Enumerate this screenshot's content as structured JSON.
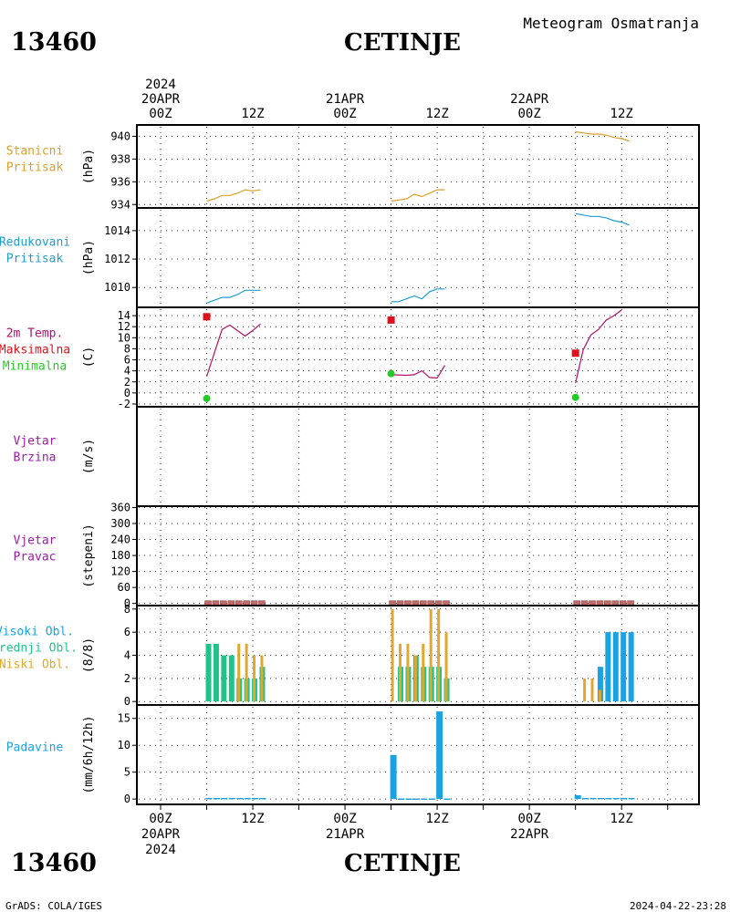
{
  "header": {
    "station_id": "13460",
    "station_name": "CETINJE",
    "title": "Meteogram Osmatranja"
  },
  "footer": {
    "credit": "GrADS: COLA/IGES",
    "timestamp": "2024-04-22-23:28"
  },
  "top_axis": {
    "date_labels": [
      {
        "hour": 0,
        "lines": [
          "2024",
          "20APR",
          "00Z"
        ]
      },
      {
        "hour": 24,
        "lines": [
          "21APR",
          "00Z"
        ]
      },
      {
        "hour": 48,
        "lines": [
          "22APR",
          "00Z"
        ]
      }
    ],
    "noon_labels": [
      {
        "hour": 12,
        "text": "12Z"
      },
      {
        "hour": 36,
        "text": "12Z"
      },
      {
        "hour": 60,
        "text": "12Z"
      }
    ]
  },
  "bottom_axis": {
    "labels": [
      {
        "hour": 0,
        "lines": [
          "00Z",
          "20APR",
          "2024"
        ]
      },
      {
        "hour": 12,
        "lines": [
          "12Z"
        ]
      },
      {
        "hour": 24,
        "lines": [
          "00Z",
          "21APR"
        ]
      },
      {
        "hour": 36,
        "lines": [
          "12Z"
        ]
      },
      {
        "hour": 48,
        "lines": [
          "00Z",
          "22APR"
        ]
      },
      {
        "hour": 60,
        "lines": [
          "12Z"
        ]
      }
    ]
  },
  "colors": {
    "station_pressure": "#d9a12b",
    "sea_pressure": "#1e9fcf",
    "temperature": "#b0106a",
    "t_max": "#e0101a",
    "t_min": "#22cc22",
    "wind": "#a01aa8",
    "wind_dir_bar": "#c06868",
    "high_clouds": "#1aa3e0",
    "mid_clouds": "#20c48a",
    "low_clouds": "#e0a82e",
    "precip": "#1aa3e0",
    "grid": "#333333"
  },
  "chart_data": [
    {
      "type": "line",
      "panel": "station_pressure",
      "labels": [
        {
          "text": "Stanicni",
          "color": "#d9a12b"
        },
        {
          "text": "Pritisak",
          "color": "#d9a12b"
        }
      ],
      "ylabel": "(hPa)",
      "ylim": [
        933.7,
        941.0
      ],
      "yticks": [
        934,
        936,
        938,
        940
      ],
      "series": [
        {
          "x": [
            6,
            7,
            8,
            9,
            10,
            11,
            12,
            13
          ],
          "y": [
            934.3,
            934.5,
            934.8,
            934.8,
            935.0,
            935.3,
            935.2,
            935.3
          ]
        },
        {
          "x": [
            30,
            31,
            32,
            33,
            34,
            35,
            36,
            37
          ],
          "y": [
            934.3,
            934.4,
            934.5,
            934.9,
            934.7,
            935.0,
            935.3,
            935.3
          ]
        },
        {
          "x": [
            54,
            55,
            56,
            57,
            58,
            59,
            60,
            61
          ],
          "y": [
            940.4,
            940.3,
            940.2,
            940.2,
            940.1,
            939.9,
            939.8,
            939.6
          ]
        }
      ]
    },
    {
      "type": "line",
      "panel": "sea_pressure",
      "labels": [
        {
          "text": "Redukovani",
          "color": "#1e9fcf"
        },
        {
          "text": "Pritisak",
          "color": "#1e9fcf"
        }
      ],
      "ylabel": "(hPa)",
      "ylim": [
        1008.6,
        1015.6
      ],
      "yticks": [
        1010,
        1012,
        1014
      ],
      "series": [
        {
          "x": [
            6,
            7,
            8,
            9,
            10,
            11,
            12,
            13
          ],
          "y": [
            1008.9,
            1009.1,
            1009.3,
            1009.3,
            1009.5,
            1009.8,
            1009.8,
            1009.8
          ]
        },
        {
          "x": [
            30,
            31,
            32,
            33,
            34,
            35,
            36,
            37
          ],
          "y": [
            1009.0,
            1009.0,
            1009.2,
            1009.4,
            1009.2,
            1009.7,
            1009.9,
            1009.9
          ]
        },
        {
          "x": [
            54,
            55,
            56,
            57,
            58,
            59,
            60,
            61
          ],
          "y": [
            1015.2,
            1015.1,
            1015.0,
            1015.0,
            1014.9,
            1014.7,
            1014.6,
            1014.4
          ]
        }
      ]
    },
    {
      "type": "line",
      "panel": "temperature",
      "labels": [
        {
          "text": "2m Temp.",
          "color": "#b0106a"
        },
        {
          "text": "Maksimalna",
          "color": "#e0101a"
        },
        {
          "text": "Minimalna",
          "color": "#22cc22"
        }
      ],
      "ylabel": "(C)",
      "ylim": [
        -2.5,
        15.5
      ],
      "yticks": [
        -2,
        0,
        2,
        4,
        6,
        8,
        10,
        12,
        14
      ],
      "series": [
        {
          "x": [
            6,
            8,
            9,
            11,
            12,
            13
          ],
          "y": [
            3.0,
            11.5,
            12.3,
            10.3,
            11.3,
            12.5
          ]
        },
        {
          "x": [
            30,
            32,
            33,
            34,
            35,
            36,
            37
          ],
          "y": [
            3.3,
            3.2,
            3.3,
            4.0,
            2.8,
            2.7,
            5.0
          ]
        },
        {
          "x": [
            54,
            55,
            56,
            57,
            58,
            59,
            60
          ],
          "y": [
            1.8,
            7.8,
            10.5,
            11.5,
            13.2,
            14.0,
            15.0
          ]
        }
      ],
      "t_max": [
        {
          "x": 6,
          "y": 13.8
        },
        {
          "x": 30,
          "y": 13.2
        },
        {
          "x": 54,
          "y": 7.2
        }
      ],
      "t_min": [
        {
          "x": 6,
          "y": -1.0
        },
        {
          "x": 30,
          "y": 3.5
        },
        {
          "x": 54,
          "y": -0.8
        }
      ]
    },
    {
      "type": "line",
      "panel": "wind_speed",
      "labels": [
        {
          "text": "Vjetar",
          "color": "#a01aa8"
        },
        {
          "text": "Brzina",
          "color": "#a01aa8"
        }
      ],
      "ylabel": "(m/s)",
      "ylim": [
        0,
        1
      ],
      "yticks": [],
      "series": []
    },
    {
      "type": "bar",
      "panel": "wind_direction",
      "labels": [
        {
          "text": "Vjetar",
          "color": "#a01aa8"
        },
        {
          "text": "Pravac",
          "color": "#a01aa8"
        }
      ],
      "ylabel": "(stepeni)",
      "ylim": [
        -8,
        365
      ],
      "yticks": [
        0,
        60,
        120,
        180,
        240,
        300,
        360
      ],
      "x": [
        6,
        7,
        8,
        9,
        10,
        11,
        12,
        13,
        30,
        31,
        32,
        33,
        34,
        35,
        36,
        37,
        54,
        55,
        56,
        57,
        58,
        59,
        60,
        61
      ],
      "values": [
        0,
        0,
        0,
        0,
        0,
        0,
        0,
        0,
        0,
        0,
        0,
        0,
        0,
        0,
        0,
        0,
        0,
        0,
        0,
        0,
        0,
        0,
        0,
        0
      ]
    },
    {
      "type": "bar",
      "panel": "clouds",
      "labels": [
        {
          "text": "Visoki Obl.",
          "color": "#1aa3e0"
        },
        {
          "text": "Srednji Obl.",
          "color": "#20c48a"
        },
        {
          "text": "Niski Obl.",
          "color": "#e0a82e"
        }
      ],
      "ylabel": "(8/8)",
      "ylim": [
        -0.3,
        8.3
      ],
      "yticks": [
        0,
        2,
        4,
        6,
        8
      ],
      "series": [
        {
          "name": "Visoki Obl.",
          "x": [
            54,
            55,
            56,
            57,
            58,
            59,
            60,
            61
          ],
          "values": [
            0,
            0,
            0,
            3,
            6,
            6,
            6,
            6
          ]
        },
        {
          "name": "Srednji Obl.",
          "x": [
            6,
            7,
            8,
            9,
            10,
            11,
            12,
            13,
            30,
            31,
            32,
            33,
            34,
            35,
            36,
            37
          ],
          "values": [
            5,
            5,
            4,
            4,
            2,
            2,
            2,
            3,
            0,
            3,
            3,
            4,
            3,
            3,
            3,
            2
          ]
        },
        {
          "name": "Niski Obl.",
          "x": [
            10,
            11,
            12,
            13,
            30,
            31,
            32,
            33,
            34,
            35,
            36,
            37,
            55,
            56,
            57
          ],
          "values": [
            5,
            5,
            4,
            4,
            8,
            5,
            5,
            4,
            5,
            8,
            8,
            6,
            2,
            2,
            1
          ]
        }
      ]
    },
    {
      "type": "bar",
      "panel": "precipitation",
      "labels": [
        {
          "text": "Padavine",
          "color": "#1aa3e0"
        }
      ],
      "ylabel": "(mm/6h/12h)",
      "ylim": [
        -1,
        17.5
      ],
      "yticks": [
        0,
        5,
        10,
        15
      ],
      "x": [
        6,
        7,
        8,
        9,
        10,
        11,
        12,
        13,
        30,
        31,
        32,
        33,
        34,
        35,
        36,
        37,
        54,
        55,
        56,
        57,
        58,
        59,
        60,
        61
      ],
      "values": [
        0.2,
        0.2,
        0.2,
        0.2,
        0.2,
        0.2,
        0.2,
        0.2,
        8.2,
        0.1,
        0.1,
        0.1,
        0.1,
        0.1,
        16.3,
        0.1,
        0.7,
        0.2,
        0.2,
        0.2,
        0.2,
        0.2,
        0.2,
        0.2
      ]
    }
  ]
}
